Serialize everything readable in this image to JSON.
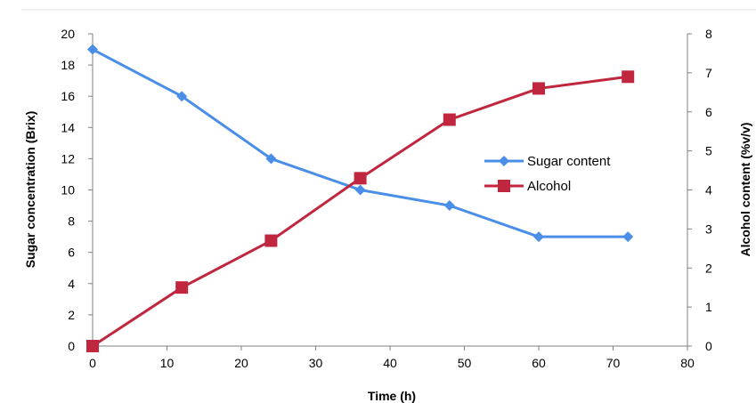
{
  "chart_data": {
    "type": "line",
    "title": "",
    "xlabel": "Time (h)",
    "ylabel": "Sugar concentration (Brix)",
    "y2label": "Alcohol content (%v/v)",
    "xlim": [
      0,
      80
    ],
    "ylim": [
      0,
      20
    ],
    "y2lim": [
      0,
      8
    ],
    "xticks": [
      0,
      10,
      20,
      30,
      40,
      50,
      60,
      70,
      80
    ],
    "yticks": [
      0,
      2,
      4,
      6,
      8,
      10,
      12,
      14,
      16,
      18,
      20
    ],
    "y2ticks": [
      0,
      1,
      2,
      3,
      4,
      5,
      6,
      7,
      8
    ],
    "grid": false,
    "legend_position": "right",
    "series": [
      {
        "name": "Sugar content",
        "axis": "left",
        "color": "#4A8EE8",
        "marker": "diamond",
        "x": [
          0,
          12,
          24,
          36,
          48,
          60,
          72
        ],
        "values": [
          19,
          16,
          12,
          10,
          9,
          7,
          7
        ]
      },
      {
        "name": "Alcohol",
        "axis": "right",
        "color": "#C0273F",
        "marker": "square",
        "x": [
          0,
          12,
          24,
          36,
          48,
          60,
          72
        ],
        "values": [
          0,
          1.5,
          2.7,
          4.3,
          5.8,
          6.6,
          6.9
        ]
      }
    ]
  }
}
